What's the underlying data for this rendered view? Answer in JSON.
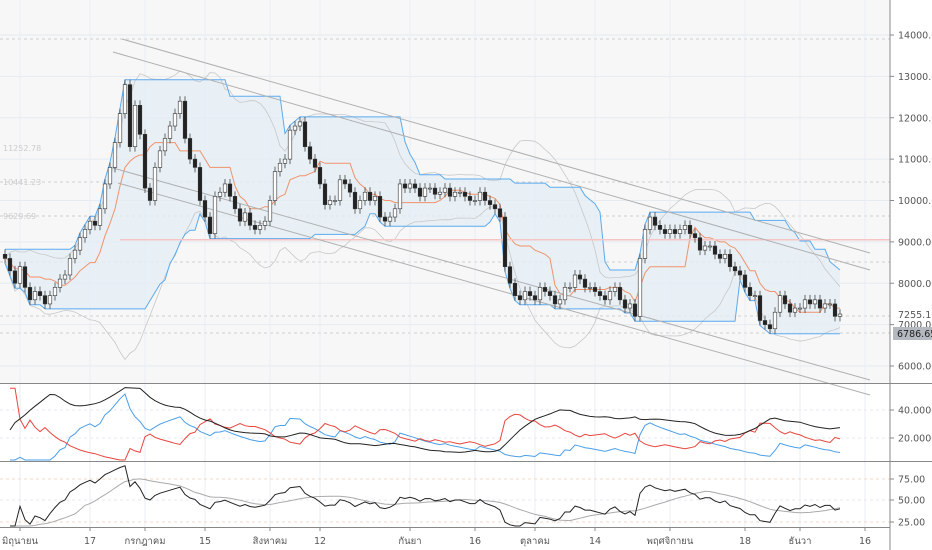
{
  "chart_data": {
    "type": "candlestick",
    "title": "",
    "price_axis": {
      "ticks": [
        "14000.00",
        "13000.00",
        "12000.00",
        "11000.00",
        "10000.00",
        "9000.00",
        "8000.00",
        "7000.00",
        "6000.00"
      ],
      "ylim": [
        5590,
        14840
      ],
      "last_price_label": "7255.16",
      "marker_label": "6786.65"
    },
    "time_axis": {
      "labels": [
        {
          "text": "มิถุนายน",
          "index": 3
        },
        {
          "text": "17",
          "index": 17
        },
        {
          "text": "กรกฎาคม",
          "index": 28
        },
        {
          "text": "15",
          "index": 40
        },
        {
          "text": "สิงหาคม",
          "index": 53
        },
        {
          "text": "12",
          "index": 63
        },
        {
          "text": "กันยา",
          "index": 81
        },
        {
          "text": "16",
          "index": 94
        },
        {
          "text": "ตุลาคม",
          "index": 106
        },
        {
          "text": "14",
          "index": 118
        },
        {
          "text": "พฤศจิกายน",
          "index": 133
        },
        {
          "text": "18",
          "index": 148
        },
        {
          "text": "ธันวา",
          "index": 159
        },
        {
          "text": "16",
          "index": 172
        }
      ]
    },
    "level_labels": [
      "11252.78",
      "10441.23",
      "9629.69"
    ],
    "horizontal_line_price": 9050,
    "closes": [
      8600,
      8300,
      8000,
      8400,
      7900,
      7600,
      7800,
      7700,
      7500,
      7700,
      7900,
      8100,
      8200,
      8600,
      8800,
      9100,
      9300,
      9500,
      9400,
      9800,
      10400,
      10800,
      11400,
      12100,
      12800,
      11300,
      12300,
      11600,
      10300,
      10000,
      10800,
      11200,
      11500,
      11800,
      12100,
      12400,
      11500,
      11000,
      10800,
      10000,
      9600,
      9200,
      10100,
      10200,
      10400,
      10100,
      9800,
      9500,
      9700,
      9400,
      9300,
      9400,
      9500,
      10000,
      10700,
      10900,
      11000,
      11700,
      11800,
      11900,
      11300,
      11000,
      10800,
      10400,
      9900,
      10000,
      10000,
      10500,
      10400,
      10200,
      9800,
      10000,
      10200,
      10000,
      10100,
      9600,
      9500,
      9600,
      9800,
      10400,
      10300,
      10400,
      10300,
      10100,
      10300,
      10300,
      10150,
      10200,
      10300,
      10100,
      10200,
      10200,
      10100,
      10000,
      10000,
      10200,
      10000,
      9900,
      9800,
      9600,
      8400,
      8000,
      7700,
      7600,
      7800,
      7700,
      7600,
      7900,
      7800,
      7700,
      7500,
      7600,
      7900,
      7900,
      8200,
      8100,
      7900,
      7900,
      7800,
      7700,
      7600,
      7800,
      7900,
      7600,
      7400,
      7500,
      7200,
      8600,
      9300,
      9600,
      9400,
      9300,
      9200,
      9300,
      9200,
      9300,
      9400,
      9200,
      9100,
      8800,
      8900,
      8900,
      8700,
      8600,
      8700,
      8400,
      8300,
      8200,
      7900,
      7700,
      7700,
      7100,
      7000,
      6900,
      7300,
      7700,
      7500,
      7300,
      7400,
      7400,
      7600,
      7500,
      7600,
      7400,
      7500,
      7500,
      7200,
      7255.16
    ],
    "indicator_panel_1": {
      "ticks": [
        "40.0000",
        "20.0000"
      ]
    },
    "indicator_panel_2": {
      "ticks": [
        "75.00",
        "50.00",
        "25.00"
      ]
    },
    "colors": {
      "up": "#ffffff",
      "down": "#222222",
      "channel": "#5aaaf0",
      "channel_fill": "#e3edf5",
      "baseline": "#f0926a",
      "bands": "#c8c8c8",
      "trend_lines": "#b0b0b0",
      "hline": "#f6c4c4",
      "di_plus": "#4a9fe8",
      "di_minus": "#e8453c",
      "adx": "#222222",
      "rsi": "#222222",
      "rsi_ma": "#aaaaaa"
    }
  }
}
